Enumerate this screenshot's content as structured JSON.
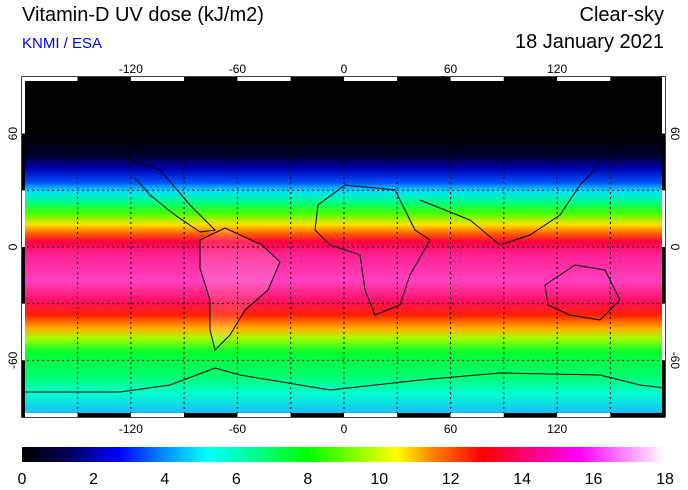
{
  "header": {
    "title": "Vitamin-D UV dose (kJ/m2)",
    "organization": "KNMI / ESA",
    "sky_condition": "Clear-sky",
    "date": "18 January 2021"
  },
  "map": {
    "longitude_ticks": [
      "-120",
      "-60",
      "0",
      "60",
      "120"
    ],
    "longitude_values": [
      -120,
      -60,
      0,
      60,
      120
    ],
    "latitude_ticks": [
      "60",
      "0",
      "-60"
    ],
    "latitude_values": [
      60,
      0,
      -60
    ]
  },
  "colorbar": {
    "labels": [
      "0",
      "2",
      "4",
      "6",
      "8",
      "10",
      "12",
      "14",
      "16",
      "18"
    ],
    "min": 0,
    "max": 18,
    "stops": [
      {
        "value": 0,
        "color": "#000000"
      },
      {
        "value": 1.2,
        "color": "#000050"
      },
      {
        "value": 2.7,
        "color": "#0000ff"
      },
      {
        "value": 4.0,
        "color": "#0090ff"
      },
      {
        "value": 5.2,
        "color": "#00ffff"
      },
      {
        "value": 6.5,
        "color": "#00ff90"
      },
      {
        "value": 8.0,
        "color": "#00ff00"
      },
      {
        "value": 10.5,
        "color": "#ffff00"
      },
      {
        "value": 11.5,
        "color": "#ff8000"
      },
      {
        "value": 12.9,
        "color": "#ff0000"
      },
      {
        "value": 15.6,
        "color": "#ff00ff"
      },
      {
        "value": 18,
        "color": "#ffffff"
      }
    ]
  }
}
